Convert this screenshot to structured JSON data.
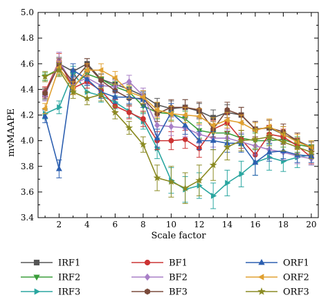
{
  "chart_data": {
    "type": "line",
    "xlabel": "Scale factor",
    "ylabel": "mvMAAPE",
    "xlim": [
      0.5,
      20.5
    ],
    "ylim": [
      3.4,
      5.0
    ],
    "xticks": [
      2,
      4,
      6,
      8,
      10,
      12,
      14,
      16,
      18,
      20
    ],
    "yticks": [
      3.4,
      3.6,
      3.8,
      4.0,
      4.2,
      4.4,
      4.6,
      4.8,
      5.0
    ],
    "grid": false,
    "legend_position": "bottom",
    "x": [
      1,
      2,
      3,
      4,
      5,
      6,
      7,
      8,
      9,
      10,
      11,
      12,
      13,
      14,
      15,
      16,
      17,
      18,
      19,
      20
    ],
    "series": [
      {
        "name": "IRF1",
        "color": "#555555",
        "marker": "square",
        "values": [
          4.36,
          4.6,
          4.54,
          4.6,
          4.48,
          4.44,
          4.4,
          4.35,
          4.28,
          4.25,
          4.26,
          4.23,
          4.18,
          4.22,
          4.2,
          4.09,
          4.1,
          4.05,
          4.0,
          3.95
        ],
        "errors": [
          0.04,
          0.05,
          0.04,
          0.04,
          0.04,
          0.04,
          0.04,
          0.04,
          0.05,
          0.06,
          0.06,
          0.06,
          0.06,
          0.06,
          0.06,
          0.06,
          0.06,
          0.06,
          0.06,
          0.05
        ]
      },
      {
        "name": "IRF2",
        "color": "#3a9d3a",
        "marker": "triangle-down",
        "values": [
          4.5,
          4.56,
          4.43,
          4.52,
          4.48,
          4.42,
          4.38,
          4.27,
          4.22,
          4.21,
          4.17,
          4.08,
          4.06,
          4.06,
          4.02,
          4.0,
          4.0,
          4.01,
          3.97,
          3.95
        ],
        "errors": [
          0.03,
          0.05,
          0.05,
          0.04,
          0.04,
          0.04,
          0.04,
          0.05,
          0.05,
          0.05,
          0.06,
          0.06,
          0.06,
          0.06,
          0.06,
          0.06,
          0.06,
          0.06,
          0.06,
          0.05
        ]
      },
      {
        "name": "IRF3",
        "color": "#2aa6a0",
        "marker": "triangle-right",
        "values": [
          4.21,
          4.26,
          4.53,
          4.38,
          4.35,
          4.3,
          4.23,
          4.15,
          3.94,
          3.69,
          3.62,
          3.65,
          3.57,
          3.67,
          3.74,
          3.83,
          3.87,
          3.84,
          3.87,
          3.89
        ],
        "errors": [
          0.04,
          0.05,
          0.05,
          0.05,
          0.05,
          0.05,
          0.05,
          0.06,
          0.08,
          0.1,
          0.1,
          0.1,
          0.1,
          0.1,
          0.1,
          0.1,
          0.1,
          0.08,
          0.08,
          0.08
        ]
      },
      {
        "name": "BF1",
        "color": "#cc3333",
        "marker": "circle",
        "values": [
          4.38,
          4.62,
          4.41,
          4.46,
          4.39,
          4.27,
          4.22,
          4.17,
          4.0,
          4.0,
          4.01,
          3.94,
          4.09,
          4.14,
          4.01,
          3.89,
          4.05,
          4.03,
          3.96,
          3.87
        ],
        "errors": [
          0.04,
          0.06,
          0.05,
          0.05,
          0.05,
          0.05,
          0.05,
          0.06,
          0.07,
          0.07,
          0.07,
          0.07,
          0.07,
          0.07,
          0.07,
          0.07,
          0.07,
          0.06,
          0.06,
          0.05
        ]
      },
      {
        "name": "BF2",
        "color": "#a87fc7",
        "marker": "diamond",
        "values": [
          4.35,
          4.62,
          4.44,
          4.49,
          4.43,
          4.42,
          4.46,
          4.35,
          4.12,
          4.11,
          4.1,
          4.05,
          4.02,
          4.02,
          3.99,
          3.96,
          3.93,
          3.91,
          3.88,
          3.86
        ],
        "errors": [
          0.04,
          0.07,
          0.05,
          0.05,
          0.05,
          0.05,
          0.05,
          0.06,
          0.07,
          0.07,
          0.07,
          0.07,
          0.07,
          0.07,
          0.07,
          0.07,
          0.07,
          0.06,
          0.06,
          0.05
        ]
      },
      {
        "name": "BF3",
        "color": "#7a4a3a",
        "marker": "hexagon",
        "values": [
          4.37,
          4.59,
          4.46,
          4.59,
          4.47,
          4.39,
          4.33,
          4.33,
          4.21,
          4.26,
          4.26,
          4.24,
          4.09,
          4.24,
          4.2,
          4.09,
          4.1,
          4.07,
          4.0,
          3.94
        ],
        "errors": [
          0.04,
          0.05,
          0.05,
          0.05,
          0.05,
          0.05,
          0.05,
          0.05,
          0.06,
          0.06,
          0.06,
          0.06,
          0.06,
          0.06,
          0.06,
          0.06,
          0.06,
          0.06,
          0.06,
          0.05
        ]
      },
      {
        "name": "ORF1",
        "color": "#2c5fb0",
        "marker": "triangle-up",
        "values": [
          4.19,
          3.78,
          4.55,
          4.48,
          4.38,
          4.34,
          4.34,
          4.32,
          4.02,
          4.22,
          4.12,
          4.0,
          4.0,
          3.98,
          3.98,
          3.83,
          3.91,
          3.92,
          3.89,
          3.88
        ],
        "errors": [
          0.05,
          0.07,
          0.05,
          0.05,
          0.05,
          0.05,
          0.05,
          0.06,
          0.07,
          0.07,
          0.07,
          0.07,
          0.07,
          0.07,
          0.07,
          0.1,
          0.07,
          0.06,
          0.06,
          0.05
        ]
      },
      {
        "name": "ORF2",
        "color": "#e0a030",
        "marker": "triangle-left",
        "values": [
          4.25,
          4.57,
          4.41,
          4.55,
          4.55,
          4.49,
          4.38,
          4.34,
          4.24,
          4.21,
          4.2,
          4.19,
          4.12,
          4.16,
          4.14,
          4.08,
          4.11,
          4.05,
          3.99,
          3.95
        ],
        "errors": [
          0.04,
          0.05,
          0.05,
          0.05,
          0.05,
          0.05,
          0.05,
          0.05,
          0.06,
          0.06,
          0.06,
          0.06,
          0.06,
          0.06,
          0.06,
          0.06,
          0.06,
          0.06,
          0.06,
          0.05
        ]
      },
      {
        "name": "ORF3",
        "color": "#8a8a22",
        "marker": "star",
        "values": [
          4.5,
          4.55,
          4.38,
          4.33,
          4.36,
          4.22,
          4.1,
          3.97,
          3.71,
          3.68,
          3.63,
          3.69,
          3.81,
          3.95,
          4.0,
          4.01,
          4.03,
          3.99,
          3.95,
          3.91
        ],
        "errors": [
          0.04,
          0.05,
          0.05,
          0.05,
          0.05,
          0.05,
          0.05,
          0.06,
          0.1,
          0.12,
          0.12,
          0.12,
          0.12,
          0.1,
          0.08,
          0.08,
          0.07,
          0.07,
          0.06,
          0.05
        ]
      }
    ]
  }
}
